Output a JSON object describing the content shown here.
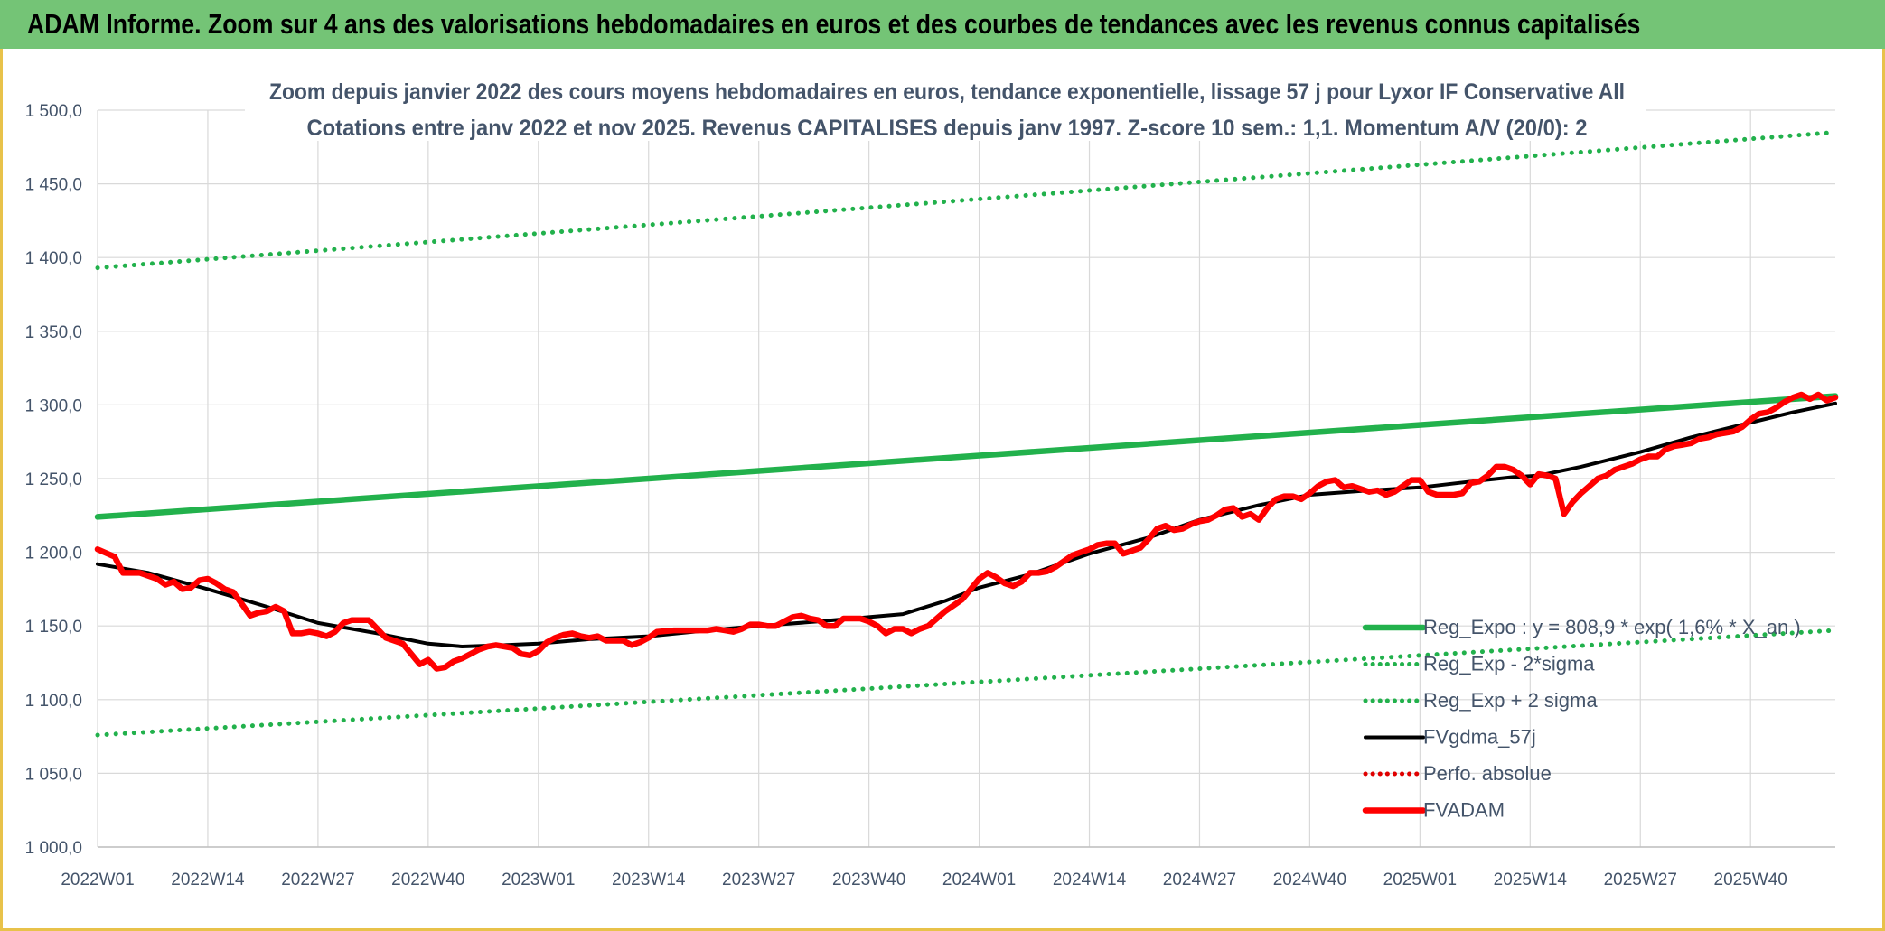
{
  "banner": {
    "title": "ADAM Informe. Zoom sur 4 ans des valorisations hebdomadaires en euros et des courbes de tendances avec les revenus connus capitalisés"
  },
  "chart_data": {
    "type": "line",
    "title": "Zoom depuis janvier 2022 des cours moyens hebdomadaires en euros, tendance exponentielle, lissage 57 j pour Lyxor IF Conservative All",
    "subtitle": "Cotations entre janv 2022 et nov 2025. Revenus CAPITALISES depuis janv 1997. Z-score 10 sem.: 1,1. Momentum A/V (20/0): 2",
    "xlabel": "",
    "ylabel": "",
    "ylim": [
      1000,
      1500
    ],
    "y_ticks": [
      "1 000,0",
      "1 050,0",
      "1 100,0",
      "1 150,0",
      "1 200,0",
      "1 250,0",
      "1 300,0",
      "1 350,0",
      "1 400,0",
      "1 450,0",
      "1 500,0"
    ],
    "y_tick_values": [
      1000,
      1050,
      1100,
      1150,
      1200,
      1250,
      1300,
      1350,
      1400,
      1450,
      1500
    ],
    "x_tick_labels": [
      "2022W01",
      "2022W14",
      "2022W27",
      "2022W40",
      "2023W01",
      "2023W14",
      "2023W27",
      "2023W40",
      "2024W01",
      "2024W14",
      "2024W27",
      "2024W40",
      "2025W01",
      "2025W14",
      "2025W27",
      "2025W40"
    ],
    "x_tick_index": [
      0,
      13,
      26,
      39,
      52,
      65,
      78,
      91,
      104,
      117,
      130,
      143,
      156,
      169,
      182,
      195
    ],
    "n_weeks": 206,
    "grid": true,
    "legend_position": "bottom-right",
    "colors": {
      "reg_expo": "#22b14c",
      "sigma": "#22b14c",
      "fvgdma": "#000000",
      "perfo": "#e00000",
      "fvadam": "#ff0000"
    },
    "series": [
      {
        "name": "Reg_Expo : y = 808,9 * exp( 1,6% * X_an )",
        "style": "solid-thick",
        "color_key": "reg_expo",
        "points": [
          [
            0,
            1224
          ],
          [
            205,
            1306
          ]
        ]
      },
      {
        "name": "Reg_Exp - 2*sigma",
        "style": "dotted",
        "color_key": "sigma",
        "points": [
          [
            0,
            1076
          ],
          [
            205,
            1147
          ]
        ]
      },
      {
        "name": "Reg_Exp + 2 sigma",
        "style": "dotted",
        "color_key": "sigma",
        "points": [
          [
            0,
            1393
          ],
          [
            205,
            1485
          ]
        ]
      },
      {
        "name": "FVgdma_57j",
        "style": "solid",
        "color_key": "fvgdma",
        "points": [
          [
            0,
            1192
          ],
          [
            6,
            1186
          ],
          [
            13,
            1175
          ],
          [
            20,
            1163
          ],
          [
            26,
            1152
          ],
          [
            33,
            1145
          ],
          [
            39,
            1138
          ],
          [
            43,
            1136
          ],
          [
            48,
            1137
          ],
          [
            52,
            1138
          ],
          [
            58,
            1141
          ],
          [
            65,
            1143
          ],
          [
            72,
            1147
          ],
          [
            78,
            1150
          ],
          [
            85,
            1153
          ],
          [
            91,
            1156
          ],
          [
            95,
            1158
          ],
          [
            100,
            1167
          ],
          [
            104,
            1176
          ],
          [
            110,
            1185
          ],
          [
            117,
            1199
          ],
          [
            124,
            1210
          ],
          [
            130,
            1222
          ],
          [
            137,
            1232
          ],
          [
            143,
            1239
          ],
          [
            150,
            1242
          ],
          [
            156,
            1244
          ],
          [
            162,
            1248
          ],
          [
            167,
            1251
          ],
          [
            170,
            1252
          ],
          [
            175,
            1258
          ],
          [
            182,
            1268
          ],
          [
            188,
            1278
          ],
          [
            195,
            1288
          ],
          [
            200,
            1295
          ],
          [
            205,
            1301
          ]
        ]
      },
      {
        "name": "Perfo. absolue",
        "style": "dotted",
        "color_key": "perfo",
        "points": []
      },
      {
        "name": "FVADAM",
        "style": "solid-thick",
        "color_key": "fvadam",
        "points": [
          [
            0,
            1202
          ],
          [
            2,
            1197
          ],
          [
            3,
            1186
          ],
          [
            5,
            1186
          ],
          [
            7,
            1182
          ],
          [
            8,
            1178
          ],
          [
            9,
            1180
          ],
          [
            10,
            1175
          ],
          [
            11,
            1176
          ],
          [
            12,
            1181
          ],
          [
            13,
            1182
          ],
          [
            14,
            1179
          ],
          [
            15,
            1175
          ],
          [
            16,
            1173
          ],
          [
            17,
            1165
          ],
          [
            18,
            1157
          ],
          [
            19,
            1159
          ],
          [
            20,
            1160
          ],
          [
            21,
            1163
          ],
          [
            22,
            1160
          ],
          [
            23,
            1145
          ],
          [
            24,
            1145
          ],
          [
            25,
            1146
          ],
          [
            26,
            1145
          ],
          [
            27,
            1143
          ],
          [
            28,
            1146
          ],
          [
            29,
            1152
          ],
          [
            30,
            1154
          ],
          [
            31,
            1154
          ],
          [
            32,
            1154
          ],
          [
            33,
            1148
          ],
          [
            34,
            1142
          ],
          [
            35,
            1140
          ],
          [
            36,
            1138
          ],
          [
            37,
            1131
          ],
          [
            38,
            1124
          ],
          [
            39,
            1127
          ],
          [
            40,
            1121
          ],
          [
            41,
            1122
          ],
          [
            42,
            1126
          ],
          [
            43,
            1128
          ],
          [
            44,
            1131
          ],
          [
            45,
            1134
          ],
          [
            46,
            1136
          ],
          [
            47,
            1137
          ],
          [
            48,
            1136
          ],
          [
            49,
            1135
          ],
          [
            50,
            1131
          ],
          [
            51,
            1130
          ],
          [
            52,
            1133
          ],
          [
            53,
            1139
          ],
          [
            54,
            1142
          ],
          [
            55,
            1144
          ],
          [
            56,
            1145
          ],
          [
            57,
            1143
          ],
          [
            58,
            1142
          ],
          [
            59,
            1143
          ],
          [
            60,
            1140
          ],
          [
            61,
            1140
          ],
          [
            62,
            1140
          ],
          [
            63,
            1137
          ],
          [
            64,
            1139
          ],
          [
            65,
            1142
          ],
          [
            66,
            1146
          ],
          [
            68,
            1147
          ],
          [
            70,
            1147
          ],
          [
            72,
            1147
          ],
          [
            73,
            1148
          ],
          [
            74,
            1147
          ],
          [
            75,
            1146
          ],
          [
            76,
            1148
          ],
          [
            77,
            1151
          ],
          [
            78,
            1151
          ],
          [
            79,
            1150
          ],
          [
            80,
            1150
          ],
          [
            81,
            1153
          ],
          [
            82,
            1156
          ],
          [
            83,
            1157
          ],
          [
            84,
            1155
          ],
          [
            85,
            1154
          ],
          [
            86,
            1150
          ],
          [
            87,
            1150
          ],
          [
            88,
            1155
          ],
          [
            89,
            1155
          ],
          [
            90,
            1155
          ],
          [
            91,
            1153
          ],
          [
            92,
            1150
          ],
          [
            93,
            1145
          ],
          [
            94,
            1148
          ],
          [
            95,
            1148
          ],
          [
            96,
            1145
          ],
          [
            97,
            1148
          ],
          [
            98,
            1150
          ],
          [
            99,
            1155
          ],
          [
            100,
            1160
          ],
          [
            101,
            1164
          ],
          [
            102,
            1168
          ],
          [
            103,
            1175
          ],
          [
            104,
            1182
          ],
          [
            105,
            1186
          ],
          [
            106,
            1183
          ],
          [
            107,
            1179
          ],
          [
            108,
            1177
          ],
          [
            109,
            1180
          ],
          [
            110,
            1186
          ],
          [
            111,
            1186
          ],
          [
            112,
            1187
          ],
          [
            113,
            1190
          ],
          [
            114,
            1194
          ],
          [
            115,
            1198
          ],
          [
            116,
            1200
          ],
          [
            117,
            1202
          ],
          [
            118,
            1205
          ],
          [
            119,
            1206
          ],
          [
            120,
            1206
          ],
          [
            121,
            1199
          ],
          [
            122,
            1201
          ],
          [
            123,
            1203
          ],
          [
            124,
            1209
          ],
          [
            125,
            1216
          ],
          [
            126,
            1218
          ],
          [
            127,
            1215
          ],
          [
            128,
            1216
          ],
          [
            129,
            1219
          ],
          [
            130,
            1221
          ],
          [
            131,
            1222
          ],
          [
            132,
            1225
          ],
          [
            133,
            1229
          ],
          [
            134,
            1230
          ],
          [
            135,
            1224
          ],
          [
            136,
            1226
          ],
          [
            137,
            1222
          ],
          [
            138,
            1230
          ],
          [
            139,
            1236
          ],
          [
            140,
            1238
          ],
          [
            141,
            1238
          ],
          [
            142,
            1236
          ],
          [
            143,
            1240
          ],
          [
            144,
            1245
          ],
          [
            145,
            1248
          ],
          [
            146,
            1249
          ],
          [
            147,
            1244
          ],
          [
            148,
            1245
          ],
          [
            149,
            1243
          ],
          [
            150,
            1241
          ],
          [
            151,
            1242
          ],
          [
            152,
            1239
          ],
          [
            153,
            1241
          ],
          [
            154,
            1245
          ],
          [
            155,
            1249
          ],
          [
            156,
            1249
          ],
          [
            157,
            1241
          ],
          [
            158,
            1239
          ],
          [
            159,
            1239
          ],
          [
            160,
            1239
          ],
          [
            161,
            1240
          ],
          [
            162,
            1247
          ],
          [
            163,
            1248
          ],
          [
            164,
            1252
          ],
          [
            165,
            1258
          ],
          [
            166,
            1258
          ],
          [
            167,
            1256
          ],
          [
            168,
            1252
          ],
          [
            169,
            1246
          ],
          [
            170,
            1253
          ],
          [
            171,
            1252
          ],
          [
            172,
            1250
          ],
          [
            173,
            1226
          ],
          [
            174,
            1234
          ],
          [
            175,
            1240
          ],
          [
            176,
            1245
          ],
          [
            177,
            1250
          ],
          [
            178,
            1252
          ],
          [
            179,
            1256
          ],
          [
            180,
            1258
          ],
          [
            181,
            1260
          ],
          [
            182,
            1263
          ],
          [
            183,
            1265
          ],
          [
            184,
            1265
          ],
          [
            185,
            1270
          ],
          [
            186,
            1272
          ],
          [
            187,
            1273
          ],
          [
            188,
            1274
          ],
          [
            189,
            1277
          ],
          [
            190,
            1278
          ],
          [
            191,
            1280
          ],
          [
            192,
            1281
          ],
          [
            193,
            1282
          ],
          [
            194,
            1285
          ],
          [
            195,
            1290
          ],
          [
            196,
            1294
          ],
          [
            197,
            1295
          ],
          [
            198,
            1298
          ],
          [
            199,
            1302
          ],
          [
            200,
            1305
          ],
          [
            201,
            1307
          ],
          [
            202,
            1304
          ],
          [
            203,
            1307
          ],
          [
            204,
            1303
          ],
          [
            205,
            1305
          ]
        ]
      }
    ]
  }
}
